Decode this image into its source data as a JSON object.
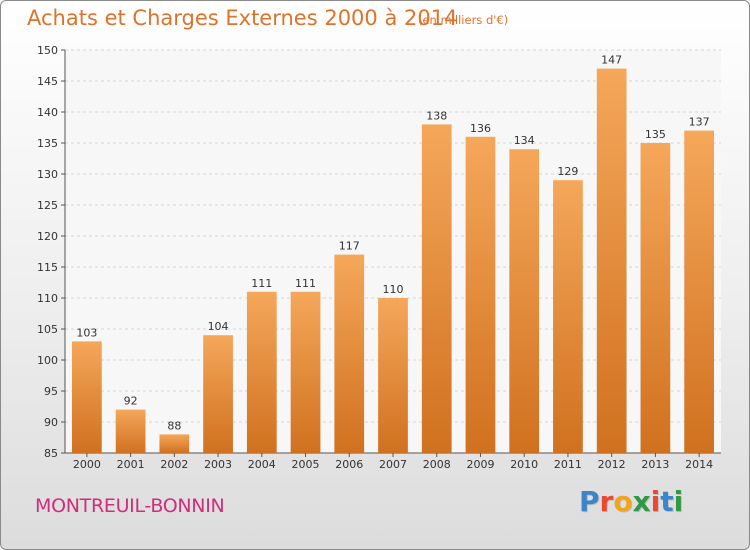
{
  "title": "Achats et Charges Externes 2000 à 2014",
  "subtitle": "(en milliers d'€)",
  "commune": "MONTREUIL-BONNIN",
  "logo": {
    "text": "Proxiti",
    "letters": [
      {
        "ch": "P",
        "color": "#3a86c8"
      },
      {
        "ch": "r",
        "color": "#e84a2f"
      },
      {
        "ch": "o",
        "color": "#f2a51c"
      },
      {
        "ch": "x",
        "color": "#2f9a43"
      },
      {
        "ch": "i",
        "color": "#e84a2f"
      },
      {
        "ch": "t",
        "color": "#3a86c8"
      },
      {
        "ch": "i",
        "color": "#2f9a43"
      }
    ]
  },
  "colors": {
    "title": "#e0732b",
    "commune": "#cf2e7a",
    "bar_top": "#f5a75a",
    "bar_bottom": "#d0711f"
  },
  "chart_data": {
    "type": "bar",
    "categories": [
      "2000",
      "2001",
      "2002",
      "2003",
      "2004",
      "2005",
      "2006",
      "2007",
      "2008",
      "2009",
      "2010",
      "2011",
      "2012",
      "2013",
      "2014"
    ],
    "values": [
      103,
      92,
      88,
      104,
      111,
      111,
      117,
      110,
      138,
      136,
      134,
      129,
      147,
      135,
      137
    ],
    "ylim": [
      85,
      150
    ],
    "yticks": [
      85,
      90,
      95,
      100,
      105,
      110,
      115,
      120,
      125,
      130,
      135,
      140,
      145,
      150
    ],
    "grid": true,
    "xlabel": "",
    "ylabel": ""
  }
}
